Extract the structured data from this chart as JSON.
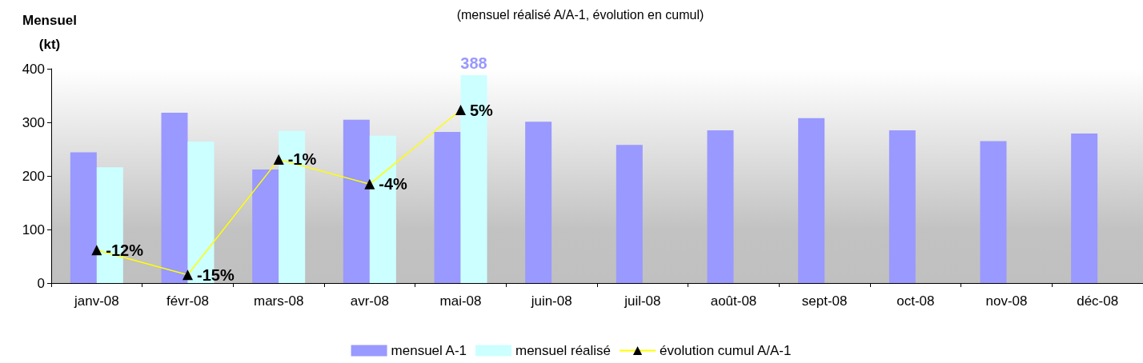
{
  "chart_data": {
    "type": "bar",
    "title": "(mensuel réalisé A/A-1, évolution en cumul)",
    "ylabel": "Mensuel\n(kt)",
    "categories": [
      "janv-08",
      "févr-08",
      "mars-08",
      "avr-08",
      "mai-08",
      "juin-08",
      "juil-08",
      "août-08",
      "sept-08",
      "oct-08",
      "nov-08",
      "déc-08"
    ],
    "series": [
      {
        "name": "mensuel A-1",
        "color": "#9999ff",
        "values": [
          244,
          318,
          212,
          305,
          282,
          301,
          258,
          285,
          308,
          285,
          265,
          279
        ]
      },
      {
        "name": "mensuel réalisé",
        "color": "#ccffff",
        "values": [
          216,
          264,
          284,
          275,
          388,
          null,
          null,
          null,
          null,
          null,
          null,
          null
        ],
        "value_labels": [
          null,
          null,
          null,
          null,
          "388",
          null,
          null,
          null,
          null,
          null,
          null,
          null
        ]
      },
      {
        "name": "évolution cumul A/A-1",
        "type": "line",
        "axis": "y2",
        "color": "#ffff00",
        "values": [
          -12,
          -15,
          -1,
          -4,
          5,
          null,
          null,
          null,
          null,
          null,
          null,
          null
        ],
        "value_labels": [
          "-12%",
          "-15%",
          "-1%",
          "-4%",
          "5%",
          null,
          null,
          null,
          null,
          null,
          null,
          null
        ]
      }
    ],
    "ylim": [
      0,
      400
    ],
    "yticks": [
      0,
      100,
      200,
      300,
      400
    ],
    "y2lim": [
      -16,
      10
    ],
    "grid": false,
    "legend": "bottom",
    "marker": "triangle"
  }
}
